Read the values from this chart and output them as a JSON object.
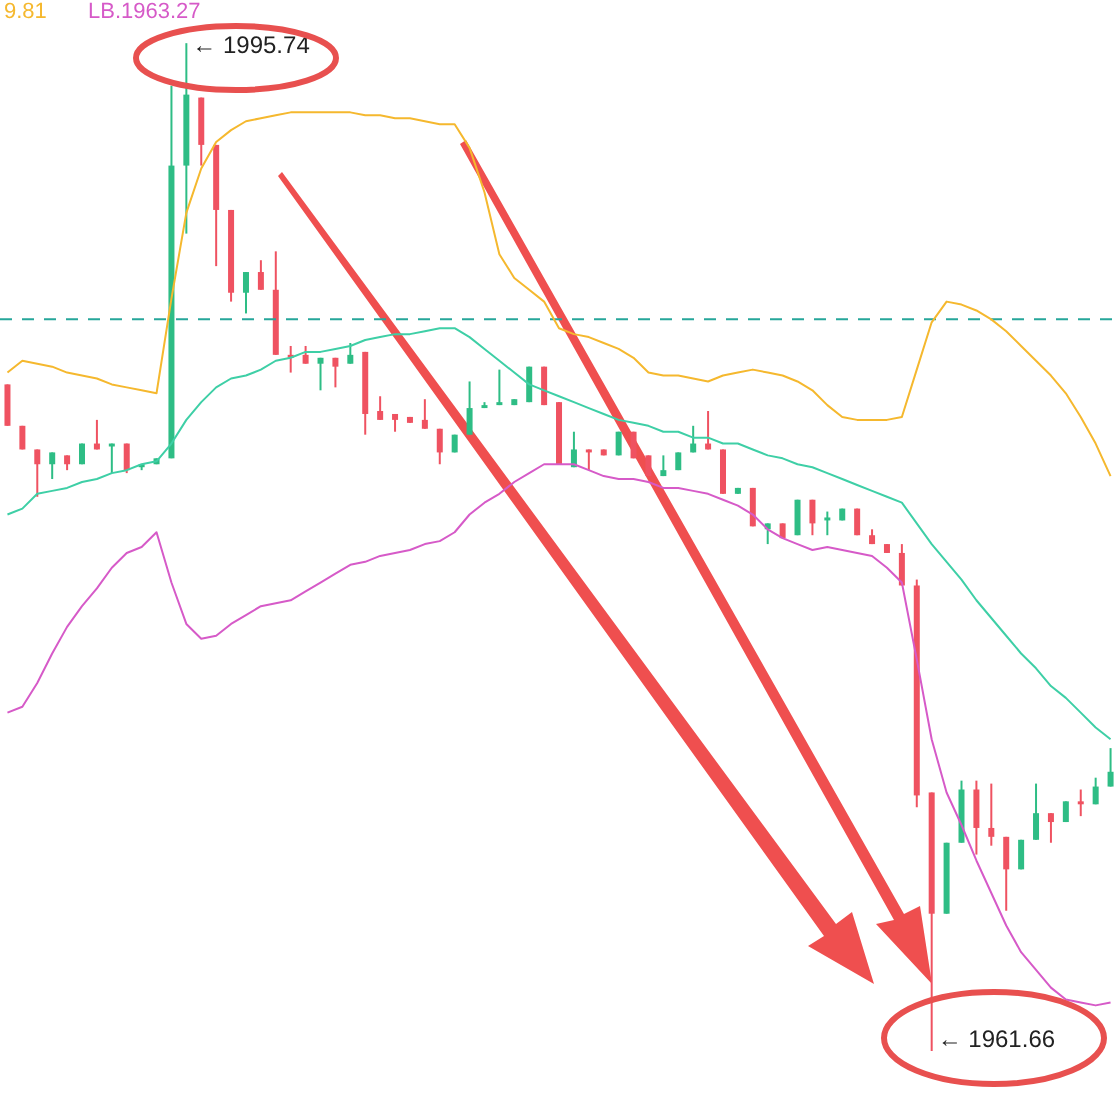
{
  "chart_data": {
    "type": "candlestick",
    "tick_labels": false,
    "ylim": [
      1960.0,
      1997.2
    ],
    "categories": [
      null,
      null,
      null,
      null,
      null,
      null,
      null,
      null,
      null,
      null,
      null,
      null,
      null,
      null,
      null,
      null,
      null,
      null,
      null,
      null,
      null,
      null,
      null,
      null,
      null,
      null,
      null,
      null,
      null,
      null,
      null,
      null,
      null,
      null,
      null,
      null,
      null,
      null,
      null,
      null,
      null,
      null,
      null,
      null,
      null,
      null,
      null,
      null,
      null,
      null,
      null,
      null,
      null,
      null,
      null,
      null,
      null,
      null,
      null,
      null,
      null,
      null,
      null,
      null,
      null,
      null,
      null,
      null,
      null,
      null,
      null,
      null,
      null,
      null,
      null
    ],
    "ohlc": [
      [
        1984.2,
        1984.2,
        1982.8,
        1982.8
      ],
      [
        1982.8,
        1982.8,
        1982.0,
        1982.0
      ],
      [
        1982.0,
        1982.0,
        1980.4,
        1981.5
      ],
      [
        1981.5,
        1981.9,
        1981.0,
        1981.9
      ],
      [
        1981.8,
        1981.8,
        1981.3,
        1981.5
      ],
      [
        1981.5,
        1982.2,
        1981.5,
        1982.2
      ],
      [
        1982.2,
        1983.0,
        1982.0,
        1982.0
      ],
      [
        1982.1,
        1982.2,
        1981.2,
        1982.2
      ],
      [
        1982.2,
        1982.2,
        1981.2,
        1981.3
      ],
      [
        1981.4,
        1981.5,
        1981.3,
        1981.5
      ],
      [
        1981.5,
        1981.7,
        1981.5,
        1981.7
      ],
      [
        1981.7,
        1994.3,
        1981.7,
        1991.6
      ],
      [
        1991.6,
        1995.74,
        1989.3,
        1994.0
      ],
      [
        1993.9,
        1993.9,
        1991.6,
        1992.3
      ],
      [
        1992.3,
        1992.3,
        1988.2,
        1990.1
      ],
      [
        1990.1,
        1990.1,
        1987.0,
        1987.3
      ],
      [
        1987.3,
        1988.0,
        1986.6,
        1988.0
      ],
      [
        1988.0,
        1988.4,
        1987.4,
        1987.4
      ],
      [
        1987.4,
        1988.7,
        1985.2,
        1985.2
      ],
      [
        1985.2,
        1985.5,
        1984.6,
        1985.1
      ],
      [
        1985.2,
        1985.5,
        1984.9,
        1984.9
      ],
      [
        1984.9,
        1985.1,
        1984.0,
        1985.1
      ],
      [
        1985.1,
        1985.1,
        1984.1,
        1984.8
      ],
      [
        1984.9,
        1985.6,
        1984.9,
        1985.2
      ],
      [
        1985.3,
        1985.3,
        1982.5,
        1983.2
      ],
      [
        1983.3,
        1983.8,
        1983.0,
        1983.0
      ],
      [
        1983.2,
        1983.2,
        1982.6,
        1983.0
      ],
      [
        1983.1,
        1983.1,
        1982.9,
        1982.9
      ],
      [
        1983.0,
        1983.7,
        1982.7,
        1982.7
      ],
      [
        1982.7,
        1982.7,
        1981.5,
        1981.9
      ],
      [
        1981.9,
        1982.5,
        1981.9,
        1982.5
      ],
      [
        1982.5,
        1984.3,
        1982.5,
        1983.4
      ],
      [
        1983.4,
        1983.6,
        1983.4,
        1983.5
      ],
      [
        1983.5,
        1984.7,
        1983.5,
        1983.6
      ],
      [
        1983.5,
        1983.7,
        1983.5,
        1983.7
      ],
      [
        1983.6,
        1984.8,
        1983.6,
        1984.8
      ],
      [
        1984.8,
        1984.8,
        1983.5,
        1983.5
      ],
      [
        1983.6,
        1983.6,
        1981.5,
        1981.5
      ],
      [
        1981.4,
        1982.6,
        1981.4,
        1982.0
      ],
      [
        1982.0,
        1982.0,
        1981.3,
        1981.9
      ],
      [
        1982.0,
        1982.0,
        1981.8,
        1981.8
      ],
      [
        1981.8,
        1982.6,
        1981.8,
        1982.6
      ],
      [
        1982.6,
        1982.6,
        1981.7,
        1981.7
      ],
      [
        1981.8,
        1981.8,
        1981.1,
        1981.1
      ],
      [
        1981.1,
        1981.8,
        1981.1,
        1981.3
      ],
      [
        1981.3,
        1981.9,
        1981.3,
        1981.9
      ],
      [
        1981.9,
        1982.8,
        1981.9,
        1982.2
      ],
      [
        1982.2,
        1983.3,
        1982.0,
        1982.0
      ],
      [
        1982.0,
        1982.0,
        1980.5,
        1980.5
      ],
      [
        1980.5,
        1980.7,
        1980.5,
        1980.7
      ],
      [
        1980.7,
        1980.7,
        1979.4,
        1979.4
      ],
      [
        1979.3,
        1979.5,
        1978.8,
        1979.5
      ],
      [
        1979.5,
        1979.5,
        1979.0,
        1979.0
      ],
      [
        1979.1,
        1980.3,
        1979.1,
        1980.3
      ],
      [
        1980.3,
        1980.3,
        1979.1,
        1979.5
      ],
      [
        1979.6,
        1979.9,
        1979.1,
        1979.7
      ],
      [
        1979.6,
        1980.0,
        1979.6,
        1980.0
      ],
      [
        1980.0,
        1980.0,
        1979.1,
        1979.1
      ],
      [
        1979.1,
        1979.3,
        1978.8,
        1978.8
      ],
      [
        1978.8,
        1978.8,
        1978.5,
        1978.5
      ],
      [
        1978.5,
        1978.8,
        1977.4,
        1977.4
      ],
      [
        1977.4,
        1977.6,
        1969.9,
        1970.3
      ],
      [
        1970.4,
        1970.4,
        1961.66,
        1966.3
      ],
      [
        1966.3,
        1968.7,
        1966.3,
        1968.7
      ],
      [
        1968.7,
        1970.8,
        1968.7,
        1970.5
      ],
      [
        1970.5,
        1970.8,
        1968.3,
        1969.2
      ],
      [
        1969.2,
        1970.7,
        1968.6,
        1968.9
      ],
      [
        1968.9,
        1968.9,
        1966.4,
        1967.8
      ],
      [
        1967.8,
        1968.8,
        1967.8,
        1968.8
      ],
      [
        1968.8,
        1970.7,
        1968.8,
        1969.7
      ],
      [
        1969.7,
        1969.7,
        1968.7,
        1969.4
      ],
      [
        1969.4,
        1970.1,
        1969.4,
        1970.1
      ],
      [
        1970.1,
        1970.5,
        1969.6,
        1970.0
      ],
      [
        1970.0,
        1970.9,
        1970.0,
        1970.6
      ],
      [
        1970.6,
        1971.9,
        1970.6,
        1971.1
      ]
    ],
    "colors": [
      "#ef5261",
      "#ef5261",
      "#ef5261",
      "#2ebd85",
      "#ef5261",
      "#2ebd85",
      "#ef5261",
      "#2ebd85",
      "#ef5261",
      "#2ebd85",
      "#2ebd85",
      "#2ebd85",
      "#2ebd85",
      "#ef5261",
      "#ef5261",
      "#ef5261",
      "#2ebd85",
      "#ef5261",
      "#ef5261",
      "#ef5261",
      "#ef5261",
      "#2ebd85",
      "#ef5261",
      "#2ebd85",
      "#ef5261",
      "#ef5261",
      "#ef5261",
      "#ef5261",
      "#ef5261",
      "#ef5261",
      "#2ebd85",
      "#2ebd85",
      "#2ebd85",
      "#2ebd85",
      "#2ebd85",
      "#2ebd85",
      "#ef5261",
      "#ef5261",
      "#2ebd85",
      "#ef5261",
      "#ef5261",
      "#2ebd85",
      "#ef5261",
      "#ef5261",
      "#2ebd85",
      "#2ebd85",
      "#2ebd85",
      "#ef5261",
      "#ef5261",
      "#2ebd85",
      "#ef5261",
      "#2ebd85",
      "#ef5261",
      "#2ebd85",
      "#ef5261",
      "#2ebd85",
      "#2ebd85",
      "#ef5261",
      "#ef5261",
      "#ef5261",
      "#ef5261",
      "#ef5261",
      "#ef5261",
      "#2ebd85",
      "#2ebd85",
      "#ef5261",
      "#ef5261",
      "#ef5261",
      "#2ebd85",
      "#2ebd85",
      "#ef5261",
      "#2ebd85",
      "#ef5261",
      "#2ebd85",
      "#2ebd85"
    ],
    "series": [
      {
        "type": "line",
        "color": "#f5b82e",
        "values": [
          1984.6,
          1985.0,
          1984.9,
          1984.8,
          1984.6,
          1984.5,
          1984.4,
          1984.2,
          1984.1,
          1984.0,
          1983.9,
          1987.1,
          1990.0,
          1991.5,
          1992.4,
          1992.8,
          1993.1,
          1993.2,
          1993.3,
          1993.4,
          1993.4,
          1993.4,
          1993.4,
          1993.4,
          1993.3,
          1993.3,
          1993.2,
          1993.2,
          1993.1,
          1993.0,
          1993.0,
          1992.2,
          1990.7,
          1988.6,
          1987.8,
          1987.4,
          1987.0,
          1986.1,
          1985.9,
          1985.8,
          1985.6,
          1985.4,
          1985.1,
          1984.6,
          1984.5,
          1984.5,
          1984.4,
          1984.3,
          1984.5,
          1984.6,
          1984.7,
          1984.6,
          1984.5,
          1984.3,
          1984.0,
          1983.5,
          1983.1,
          1983.0,
          1983.0,
          1983.0,
          1983.1,
          1984.7,
          1986.3,
          1987.0,
          1986.9,
          1986.7,
          1986.4,
          1986.0,
          1985.5,
          1985.0,
          1984.5,
          1983.9,
          1983.1,
          1982.2,
          1981.1
        ]
      },
      {
        "type": "line",
        "color": "#3ecfa6",
        "values": [
          1979.8,
          1980.0,
          1980.5,
          1980.6,
          1980.7,
          1980.9,
          1981.0,
          1981.2,
          1981.3,
          1981.5,
          1981.6,
          1982.2,
          1983.0,
          1983.6,
          1984.1,
          1984.4,
          1984.5,
          1984.7,
          1985.0,
          1985.1,
          1985.3,
          1985.3,
          1985.4,
          1985.5,
          1985.7,
          1985.8,
          1985.9,
          1985.9,
          1986.0,
          1986.1,
          1986.1,
          1985.8,
          1985.4,
          1985.0,
          1984.6,
          1984.2,
          1984.0,
          1983.8,
          1983.6,
          1983.4,
          1983.2,
          1983.0,
          1982.9,
          1982.8,
          1982.6,
          1982.6,
          1982.4,
          1982.4,
          1982.2,
          1982.2,
          1982.0,
          1981.8,
          1981.7,
          1981.5,
          1981.4,
          1981.2,
          1981.0,
          1980.8,
          1980.6,
          1980.4,
          1980.2,
          1979.5,
          1978.8,
          1978.2,
          1977.6,
          1976.9,
          1976.3,
          1975.7,
          1975.1,
          1974.6,
          1974.0,
          1973.6,
          1973.1,
          1972.6,
          1972.2
        ]
      },
      {
        "type": "line",
        "color": "#d65ac8",
        "values": [
          1973.1,
          1973.3,
          1974.1,
          1975.1,
          1976.0,
          1976.7,
          1977.3,
          1978.0,
          1978.5,
          1978.7,
          1979.2,
          1977.5,
          1976.1,
          1975.6,
          1975.7,
          1976.1,
          1976.4,
          1976.7,
          1976.8,
          1976.9,
          1977.2,
          1977.5,
          1977.8,
          1978.1,
          1978.2,
          1978.4,
          1978.5,
          1978.6,
          1978.8,
          1978.9,
          1979.2,
          1979.8,
          1980.2,
          1980.5,
          1980.9,
          1981.2,
          1981.5,
          1981.5,
          1981.5,
          1981.3,
          1981.1,
          1981.0,
          1981.0,
          1980.9,
          1980.7,
          1980.7,
          1980.6,
          1980.5,
          1980.3,
          1980.1,
          1979.8,
          1979.3,
          1979.0,
          1978.8,
          1978.6,
          1978.7,
          1978.6,
          1978.5,
          1978.4,
          1978.0,
          1977.5,
          1974.9,
          1972.2,
          1970.4,
          1969.3,
          1968.1,
          1967.0,
          1965.9,
          1965.0,
          1964.4,
          1963.8,
          1963.4,
          1963.3,
          1963.2,
          1963.3
        ]
      }
    ],
    "ref_lines": [
      {
        "axis": "y",
        "value": 1986.4,
        "color": "#26a69a",
        "line_style": "dashed"
      }
    ],
    "annotations": [
      "9.81",
      "LB.1963.27",
      "← 1995.74",
      "← 1961.66"
    ]
  }
}
